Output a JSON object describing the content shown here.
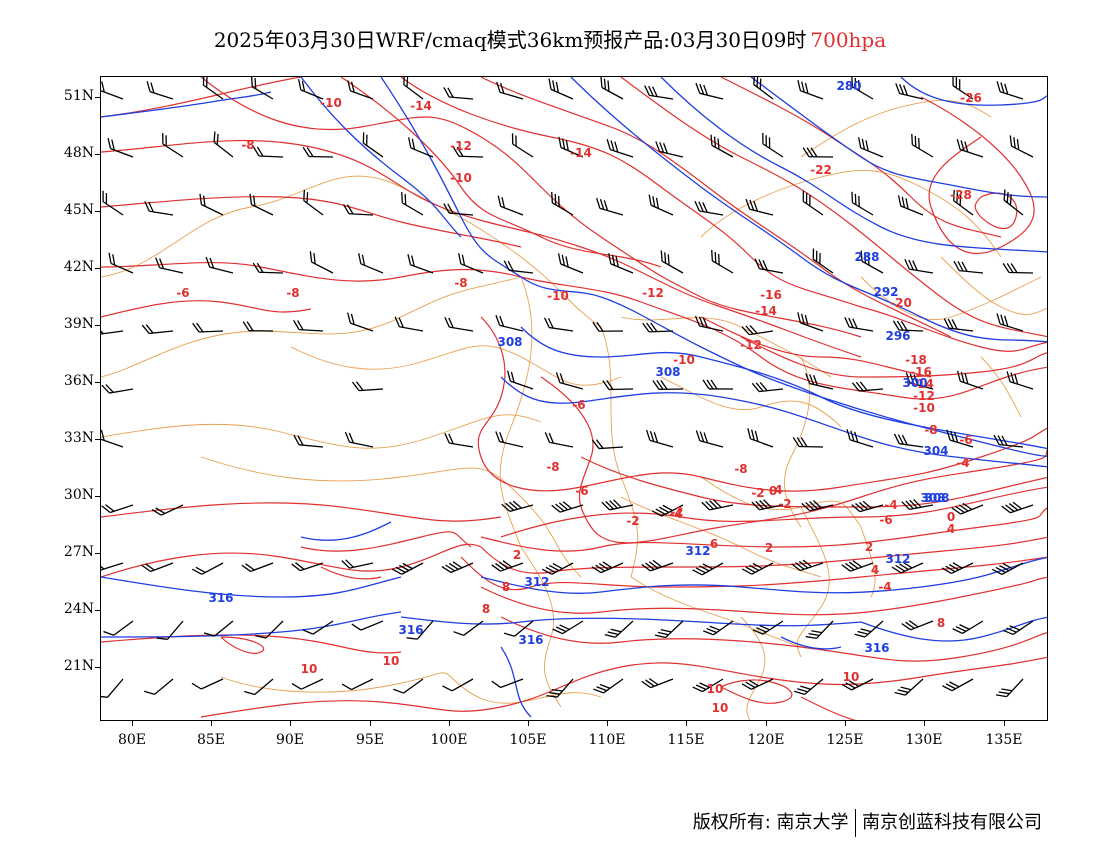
{
  "title": {
    "main": "2025年03月30日WRF/cmaq模式36km预报产品:03月30日09时",
    "level": "700hpa"
  },
  "axes": {
    "lat_labels": [
      "51N",
      "48N",
      "45N",
      "42N",
      "39N",
      "36N",
      "33N",
      "30N",
      "27N",
      "24N",
      "21N"
    ],
    "lon_labels": [
      "80E",
      "85E",
      "90E",
      "95E",
      "100E",
      "105E",
      "110E",
      "115E",
      "120E",
      "125E",
      "130E",
      "135E"
    ]
  },
  "temperature_labels": [
    "-10",
    "-14",
    "-8",
    "-12",
    "-10",
    "-14",
    "-22",
    "-26",
    "-28",
    "-6",
    "-8",
    "-8",
    "-10",
    "-12",
    "-16",
    "-14",
    "-12",
    "-10",
    "-20",
    "-18",
    "-16",
    "-14",
    "-12",
    "-10",
    "-8",
    "-6",
    "-4",
    "-8",
    "-6",
    "-8",
    "-4",
    "-6",
    "-4",
    "-2",
    "0",
    "-2",
    "-2",
    "-4",
    "-6",
    "-2",
    "2",
    "2",
    "0",
    "4",
    "4",
    "2",
    "-4",
    "6",
    "8",
    "8",
    "10",
    "10",
    "10",
    "10",
    "10",
    "8"
  ],
  "height_labels": [
    "280",
    "288",
    "292",
    "296",
    "300",
    "304",
    "308",
    "308",
    "308",
    "312",
    "312",
    "312",
    "316",
    "316",
    "316",
    "316",
    "308"
  ],
  "credit": {
    "left": "版权所有: 南京大学",
    "right": "南京创蓝科技有限公司"
  },
  "colors": {
    "temperature": "#e03030",
    "height": "#1e3ee0",
    "boundaries": "#e8a050",
    "wind": "#000000"
  }
}
